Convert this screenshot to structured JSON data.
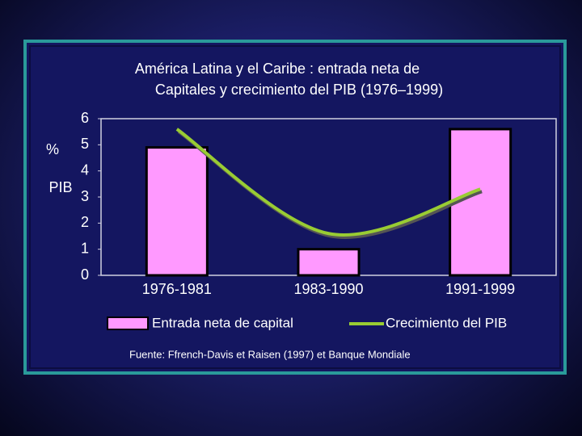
{
  "chart_data": {
    "type": "bar",
    "title": [
      "América Latina y el Caribe : entrada neta de",
      "Capitales y crecimiento del PIB (1976–1999)"
    ],
    "ylabel": [
      "%",
      "PIB"
    ],
    "categories": [
      "1976-1981",
      "1983-1990",
      "1991-1999"
    ],
    "series": [
      {
        "name": "Entrada neta de capital",
        "type": "bar",
        "color": "#ff99ff",
        "values": [
          4.9,
          1.0,
          5.6
        ]
      },
      {
        "name": "Crecimiento del PIB",
        "type": "line",
        "color": "#99cc33",
        "values": [
          5.6,
          1.6,
          3.3
        ]
      }
    ],
    "ylim": [
      0,
      6
    ],
    "yticks": [
      0,
      1,
      2,
      3,
      4,
      5,
      6
    ],
    "grid": false,
    "source": "Fuente: Ffrench-Davis  et Raisen (1997) et Banque Mondiale"
  }
}
